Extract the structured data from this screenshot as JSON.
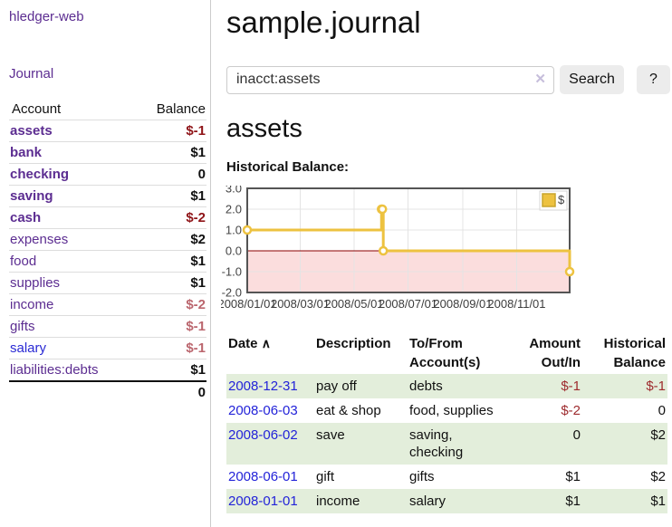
{
  "app": {
    "brand": "hledger-web",
    "journal_link": "Journal"
  },
  "colors": {
    "link_purple": "#5c2d91",
    "link_blue": "#2a2ad4",
    "date_link_blue": "#2323d9",
    "negative_strong": "#8f1418",
    "negative_soft": "#bb666e",
    "negative_table": "#9e2b2e",
    "row_shaded_green": "#e3eedb",
    "chart_line_yellow": "#edc240",
    "chart_negative_fill": "#fbdddd",
    "chart_zero_line": "#8b0000"
  },
  "sidebar": {
    "accounts_header": {
      "account": "Account",
      "balance": "Balance"
    },
    "accounts": [
      {
        "name": "assets",
        "indent": 0,
        "bold": true,
        "link_color": "purple",
        "balance": "$-1",
        "balance_class": "neg-strong"
      },
      {
        "name": "bank",
        "indent": 1,
        "bold": true,
        "link_color": "purple",
        "balance": "$1",
        "balance_class": "pos"
      },
      {
        "name": "checking",
        "indent": 2,
        "bold": true,
        "link_color": "purple",
        "balance": "0",
        "balance_class": "pos"
      },
      {
        "name": "saving",
        "indent": 2,
        "bold": true,
        "link_color": "purple",
        "balance": "$1",
        "balance_class": "pos"
      },
      {
        "name": "cash",
        "indent": 1,
        "bold": true,
        "link_color": "purple",
        "balance": "$-2",
        "balance_class": "neg-strong"
      },
      {
        "name": "expenses",
        "indent": 0,
        "bold": false,
        "link_color": "purple",
        "balance": "$2",
        "balance_class": "pos"
      },
      {
        "name": "food",
        "indent": 1,
        "bold": false,
        "link_color": "purple",
        "balance": "$1",
        "balance_class": "pos"
      },
      {
        "name": "supplies",
        "indent": 1,
        "bold": false,
        "link_color": "purple",
        "balance": "$1",
        "balance_class": "pos"
      },
      {
        "name": "income",
        "indent": 0,
        "bold": false,
        "link_color": "purple",
        "balance": "$-2",
        "balance_class": "neg-soft"
      },
      {
        "name": "gifts",
        "indent": 1,
        "bold": false,
        "link_color": "purple",
        "balance": "$-1",
        "balance_class": "neg-soft"
      },
      {
        "name": "salary",
        "indent": 1,
        "bold": false,
        "link_color": "blue",
        "balance": "$-1",
        "balance_class": "neg-soft"
      },
      {
        "name": "liabilities:debts",
        "indent": 0,
        "bold": false,
        "link_color": "purple",
        "balance": "$1",
        "balance_class": "pos"
      }
    ],
    "total": "0"
  },
  "header": {
    "title": "sample.journal"
  },
  "search": {
    "value": "inacct:assets",
    "clear_icon": "✕",
    "button": "Search",
    "help_button": "?"
  },
  "account_page": {
    "title": "assets",
    "chart_heading": "Historical Balance:"
  },
  "chart_data": {
    "type": "line",
    "step": true,
    "title": "Historical Balance:",
    "series": [
      {
        "name": "$",
        "color": "#edc240",
        "points": [
          {
            "date": "2008/01/01",
            "day": 0,
            "value": 1
          },
          {
            "date": "2008/06/01",
            "day": 152,
            "value": 2
          },
          {
            "date": "2008/06/02",
            "day": 153,
            "value": 2
          },
          {
            "date": "2008/06/03",
            "day": 154,
            "value": 0
          },
          {
            "date": "2008/12/31",
            "day": 365,
            "value": -1
          }
        ]
      }
    ],
    "ylim": [
      -2,
      3
    ],
    "xlim_days": [
      0,
      365
    ],
    "yticks": [
      {
        "label": "3.0",
        "value": 3
      },
      {
        "label": "2.0",
        "value": 2
      },
      {
        "label": "1.0",
        "value": 1
      },
      {
        "label": "0.0",
        "value": 0
      },
      {
        "label": "-1.0",
        "value": -1
      },
      {
        "label": "-2.0",
        "value": -2
      }
    ],
    "xticks": [
      {
        "label": "2008/01/01",
        "day": 0
      },
      {
        "label": "2008/03/01",
        "day": 60
      },
      {
        "label": "2008/05/01",
        "day": 121
      },
      {
        "label": "2008/07/01",
        "day": 182
      },
      {
        "label": "2008/09/01",
        "day": 244
      },
      {
        "label": "2008/11/01",
        "day": 305
      }
    ],
    "legend": {
      "position": "top-right",
      "items": [
        {
          "label": "$",
          "color": "#edc240"
        }
      ]
    },
    "grid": true,
    "negative_region_fill": "#fbdddd",
    "zero_line_color": "#8b0000"
  },
  "register_table": {
    "date_label": "Date",
    "sort_icon": "∧",
    "description_label": "Description",
    "accounts_label": "To/From Account(s)",
    "amount_label": "Amount Out/In",
    "balance_label": "Historical Balance",
    "rows": [
      {
        "date": "2008-12-31",
        "description": "pay off",
        "accounts": "debts",
        "amount": "$-1",
        "amount_neg": true,
        "balance": "$-1",
        "balance_neg": true,
        "shaded": true
      },
      {
        "date": "2008-06-03",
        "description": "eat & shop",
        "accounts": "food, supplies",
        "amount": "$-2",
        "amount_neg": true,
        "balance": "0",
        "balance_neg": false,
        "shaded": false
      },
      {
        "date": "2008-06-02",
        "description": "save",
        "accounts": "saving, checking",
        "amount": "0",
        "amount_neg": false,
        "balance": "$2",
        "balance_neg": false,
        "shaded": true
      },
      {
        "date": "2008-06-01",
        "description": "gift",
        "accounts": "gifts",
        "amount": "$1",
        "amount_neg": false,
        "balance": "$2",
        "balance_neg": false,
        "shaded": false
      },
      {
        "date": "2008-01-01",
        "description": "income",
        "accounts": "salary",
        "amount": "$1",
        "amount_neg": false,
        "balance": "$1",
        "balance_neg": false,
        "shaded": true
      }
    ]
  }
}
